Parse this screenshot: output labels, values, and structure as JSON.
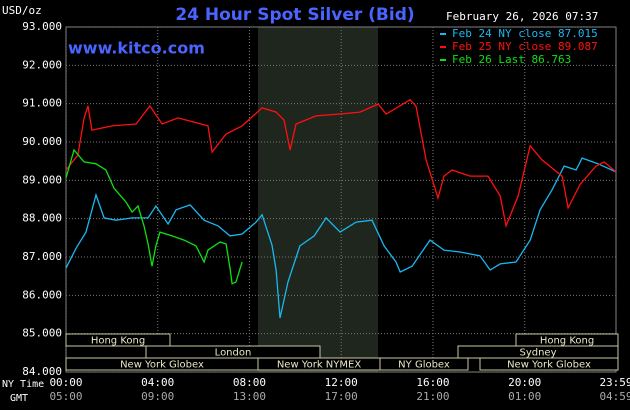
{
  "chart_data": {
    "type": "line",
    "title": "24 Hour Spot Silver (Bid)",
    "subtitle": "February 26, 2026 07:37",
    "watermark": "www.kitco.com",
    "y_label": "USD/oz",
    "x_label": "NY Time",
    "x2_label": "GMT",
    "xlim": [
      0,
      23.98
    ],
    "ylim": [
      84,
      93
    ],
    "xticks": [
      {
        "value": 0,
        "label": "00:00"
      },
      {
        "value": 4,
        "label": "04:00"
      },
      {
        "value": 8,
        "label": "08:00"
      },
      {
        "value": 12,
        "label": "12:00"
      },
      {
        "value": 16,
        "label": "16:00"
      },
      {
        "value": 20,
        "label": "20:00"
      },
      {
        "value": 23.98,
        "label": "23:59"
      }
    ],
    "x2ticks": [
      {
        "value": 0,
        "label": "05:00"
      },
      {
        "value": 4,
        "label": "09:00"
      },
      {
        "value": 8,
        "label": "13:00"
      },
      {
        "value": 12,
        "label": "17:00"
      },
      {
        "value": 16,
        "label": "21:00"
      },
      {
        "value": 20,
        "label": "01:00"
      },
      {
        "value": 23.98,
        "label": "04:59"
      }
    ],
    "yticks": [
      {
        "value": 84,
        "label": "84.000"
      },
      {
        "value": 85,
        "label": "85.000"
      },
      {
        "value": 86,
        "label": "86.000"
      },
      {
        "value": 87,
        "label": "87.000"
      },
      {
        "value": 88,
        "label": "88.000"
      },
      {
        "value": 89,
        "label": "89.000"
      },
      {
        "value": 90,
        "label": "90.000"
      },
      {
        "value": 91,
        "label": "91.000"
      },
      {
        "value": 92,
        "label": "92.000"
      },
      {
        "value": 93,
        "label": "93.000"
      }
    ],
    "grid": true,
    "sessions": [
      "Hong Kong",
      "London",
      "New York Globex",
      "New York NYMEX",
      "NY Globex",
      "Hong Kong",
      "Sydney",
      "New York Globex"
    ],
    "series": [
      {
        "name": "Feb 24 NY close 87.015",
        "color": "#1ab8f0",
        "x": [
          0.0,
          0.44,
          0.87,
          1.31,
          1.66,
          2.18,
          2.88,
          3.58,
          3.92,
          4.45,
          4.8,
          5.41,
          6.02,
          6.63,
          7.15,
          7.68,
          8.29,
          8.55,
          8.98,
          9.16,
          9.33,
          9.68,
          10.2,
          10.82,
          11.34,
          11.95,
          12.65,
          13.34,
          13.87,
          14.39,
          14.57,
          15.09,
          15.87,
          16.48,
          17.18,
          18.05,
          18.49,
          18.93,
          19.62,
          20.24,
          20.67,
          21.19,
          21.72,
          22.24,
          22.5,
          23.2,
          23.98
        ],
        "values": [
          86.71,
          87.23,
          87.65,
          88.62,
          88.02,
          87.96,
          88.02,
          88.02,
          88.33,
          87.86,
          88.23,
          88.36,
          87.96,
          87.81,
          87.55,
          87.6,
          87.91,
          88.1,
          87.31,
          86.66,
          85.41,
          86.35,
          87.29,
          87.55,
          88.02,
          87.65,
          87.91,
          87.96,
          87.29,
          86.87,
          86.61,
          86.76,
          87.44,
          87.18,
          87.13,
          87.03,
          86.66,
          86.82,
          86.87,
          87.44,
          88.23,
          88.75,
          89.37,
          89.27,
          89.58,
          89.43,
          89.22
        ]
      },
      {
        "name": "Feb 25 NY close 89.087",
        "color": "#ff1010",
        "x": [
          0,
          0.52,
          0.79,
          0.96,
          1.13,
          2.01,
          3.05,
          3.66,
          4.19,
          4.88,
          5.58,
          6.19,
          6.37,
          6.98,
          7.68,
          8.55,
          9.16,
          9.51,
          9.77,
          10.03,
          10.9,
          11.95,
          12.82,
          13.61,
          13.96,
          15.0,
          15.26,
          15.7,
          16.22,
          16.48,
          16.83,
          17.62,
          18.4,
          18.93,
          19.19,
          19.71,
          20.24,
          20.76,
          21.63,
          21.89,
          22.42,
          23.11,
          23.46,
          23.98
        ],
        "values": [
          89.27,
          89.66,
          90.63,
          90.94,
          90.31,
          90.42,
          90.47,
          90.94,
          90.47,
          90.63,
          90.52,
          90.42,
          89.74,
          90.21,
          90.42,
          90.89,
          90.78,
          90.57,
          89.79,
          90.47,
          90.68,
          90.73,
          90.78,
          90.99,
          90.73,
          91.1,
          90.94,
          89.53,
          88.54,
          89.11,
          89.27,
          89.11,
          89.11,
          88.59,
          87.81,
          88.59,
          89.9,
          89.53,
          89.11,
          88.28,
          88.9,
          89.37,
          89.48,
          89.22
        ]
      },
      {
        "name": "Feb 26 Last 86.763",
        "color": "#10e010",
        "x": [
          0,
          0.35,
          0.79,
          1.31,
          1.74,
          2.09,
          2.62,
          2.88,
          3.14,
          3.4,
          3.58,
          3.75,
          3.92,
          4.1,
          4.62,
          5.15,
          5.67,
          6.02,
          6.19,
          6.72,
          6.98,
          7.15,
          7.24,
          7.41,
          7.68
        ],
        "values": [
          89.06,
          89.79,
          89.48,
          89.43,
          89.27,
          88.8,
          88.43,
          88.17,
          88.33,
          87.81,
          87.34,
          86.76,
          87.29,
          87.65,
          87.55,
          87.44,
          87.29,
          86.87,
          87.18,
          87.39,
          87.34,
          86.71,
          86.3,
          86.35,
          86.87
        ]
      }
    ]
  }
}
